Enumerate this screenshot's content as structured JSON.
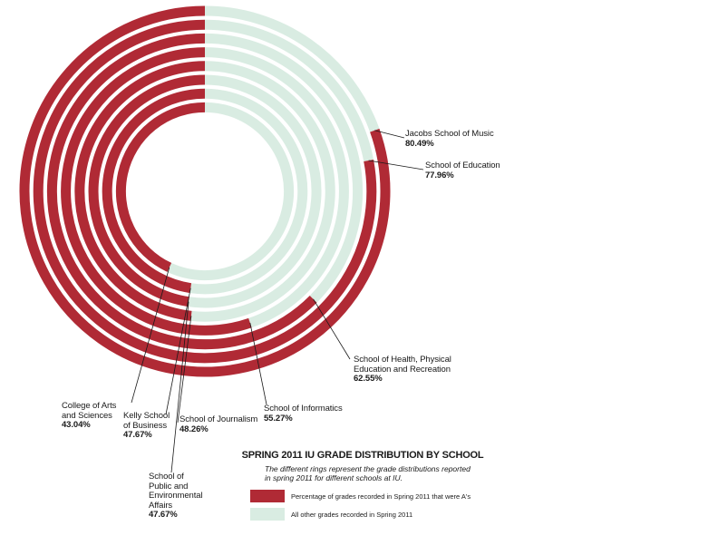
{
  "chart_data": {
    "type": "radial-bar",
    "title": "SPRING 2011 IU GRADE DISTRIBUTION BY SCHOOL",
    "subtitle": "The different rings represent the grade distributions reported in spring 2011  for different schools at IU.",
    "series": [
      {
        "name": "Percentage of grades recorded in Spring 2011 that were A's",
        "color": "#b02a35"
      },
      {
        "name": "All other grades recorded in Spring 2011",
        "color": "#d9ece2"
      }
    ],
    "rings": [
      {
        "school": "Jacobs School of Music",
        "value": 80.49,
        "label": "80.49%"
      },
      {
        "school": "School of Education",
        "value": 77.96,
        "label": "77.96%"
      },
      {
        "school": "School of Health, Physical\nEducation and Recreation",
        "value": 62.55,
        "label": "62.55%"
      },
      {
        "school": "School of Informatics",
        "value": 55.27,
        "label": "55.27%"
      },
      {
        "school": "School of Journalism",
        "value": 48.26,
        "label": "48.26%"
      },
      {
        "school": "School of\nPublic and\nEnvironmental\nAffairs",
        "value": 47.67,
        "label": "47.67%"
      },
      {
        "school": "Kelly School\nof Business",
        "value": 47.67,
        "label": "47.67%"
      },
      {
        "school": "College of Arts\nand Sciences",
        "value": 43.04,
        "label": "43.04%"
      }
    ]
  }
}
